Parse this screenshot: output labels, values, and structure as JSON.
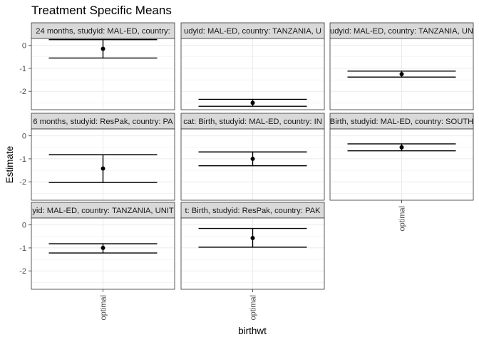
{
  "chart_data": {
    "type": "errorbar",
    "title": "Treatment Specific Means",
    "xlabel": "birthwt",
    "ylabel": "Estimate",
    "ylim": [
      -2.8,
      0.3
    ],
    "yticks": [
      0,
      -1,
      -2
    ],
    "grid": true,
    "legend": "none",
    "panels": [
      {
        "strip": "24 months, studyid: MAL-ED, country:",
        "x": "optimal",
        "estimate": -0.15,
        "ci": [
          -0.55,
          0.25
        ]
      },
      {
        "strip": "udyid: MAL-ED, country: TANZANIA, U",
        "x": "optimal",
        "estimate": -2.5,
        "ci": [
          -2.65,
          -2.35
        ]
      },
      {
        "strip": "udyid: MAL-ED, country: TANZANIA, UN",
        "x": "optimal",
        "estimate": -1.25,
        "ci": [
          -1.38,
          -1.12
        ]
      },
      {
        "strip": "6 months, studyid: ResPak, country: PA",
        "x": "optimal",
        "estimate": -1.42,
        "ci": [
          -2.03,
          -0.82
        ]
      },
      {
        "strip": "cat: Birth, studyid: MAL-ED, country: IN",
        "x": "optimal",
        "estimate": -1.0,
        "ci": [
          -1.3,
          -0.7
        ]
      },
      {
        "strip": "Birth, studyid: MAL-ED, country: SOUTH",
        "x": "optimal",
        "estimate": -0.5,
        "ci": [
          -0.65,
          -0.35
        ]
      },
      {
        "strip": "yid: MAL-ED, country: TANZANIA, UNIT",
        "x": "optimal",
        "estimate": -1.0,
        "ci": [
          -1.22,
          -0.82
        ]
      },
      {
        "strip": "t: Birth, studyid: ResPak, country: PAK",
        "x": "optimal",
        "estimate": -0.57,
        "ci": [
          -0.97,
          -0.15
        ]
      }
    ]
  }
}
